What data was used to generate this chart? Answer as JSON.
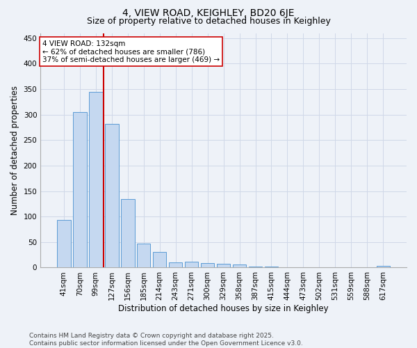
{
  "title": "4, VIEW ROAD, KEIGHLEY, BD20 6JE",
  "subtitle": "Size of property relative to detached houses in Keighley",
  "xlabel": "Distribution of detached houses by size in Keighley",
  "ylabel": "Number of detached properties",
  "categories": [
    "41sqm",
    "70sqm",
    "99sqm",
    "127sqm",
    "156sqm",
    "185sqm",
    "214sqm",
    "243sqm",
    "271sqm",
    "300sqm",
    "329sqm",
    "358sqm",
    "387sqm",
    "415sqm",
    "444sqm",
    "473sqm",
    "502sqm",
    "531sqm",
    "559sqm",
    "588sqm",
    "617sqm"
  ],
  "values": [
    93,
    305,
    345,
    282,
    135,
    47,
    30,
    10,
    12,
    9,
    7,
    6,
    2,
    2,
    1,
    1,
    0,
    1,
    0,
    0,
    3
  ],
  "bar_color": "#c5d8f0",
  "bar_edge_color": "#5b9bd5",
  "vline_x_index": 3,
  "vline_color": "#cc0000",
  "annotation_text": "4 VIEW ROAD: 132sqm\n← 62% of detached houses are smaller (786)\n37% of semi-detached houses are larger (469) →",
  "annotation_box_color": "#ffffff",
  "annotation_box_edge_color": "#cc0000",
  "ylim": [
    0,
    460
  ],
  "yticks": [
    0,
    50,
    100,
    150,
    200,
    250,
    300,
    350,
    400,
    450
  ],
  "grid_color": "#d0d8e8",
  "bg_color": "#eef2f8",
  "footer_text": "Contains HM Land Registry data © Crown copyright and database right 2025.\nContains public sector information licensed under the Open Government Licence v3.0.",
  "title_fontsize": 10,
  "subtitle_fontsize": 9,
  "axis_label_fontsize": 8.5,
  "tick_fontsize": 7.5,
  "annotation_fontsize": 7.5,
  "footer_fontsize": 6.5
}
